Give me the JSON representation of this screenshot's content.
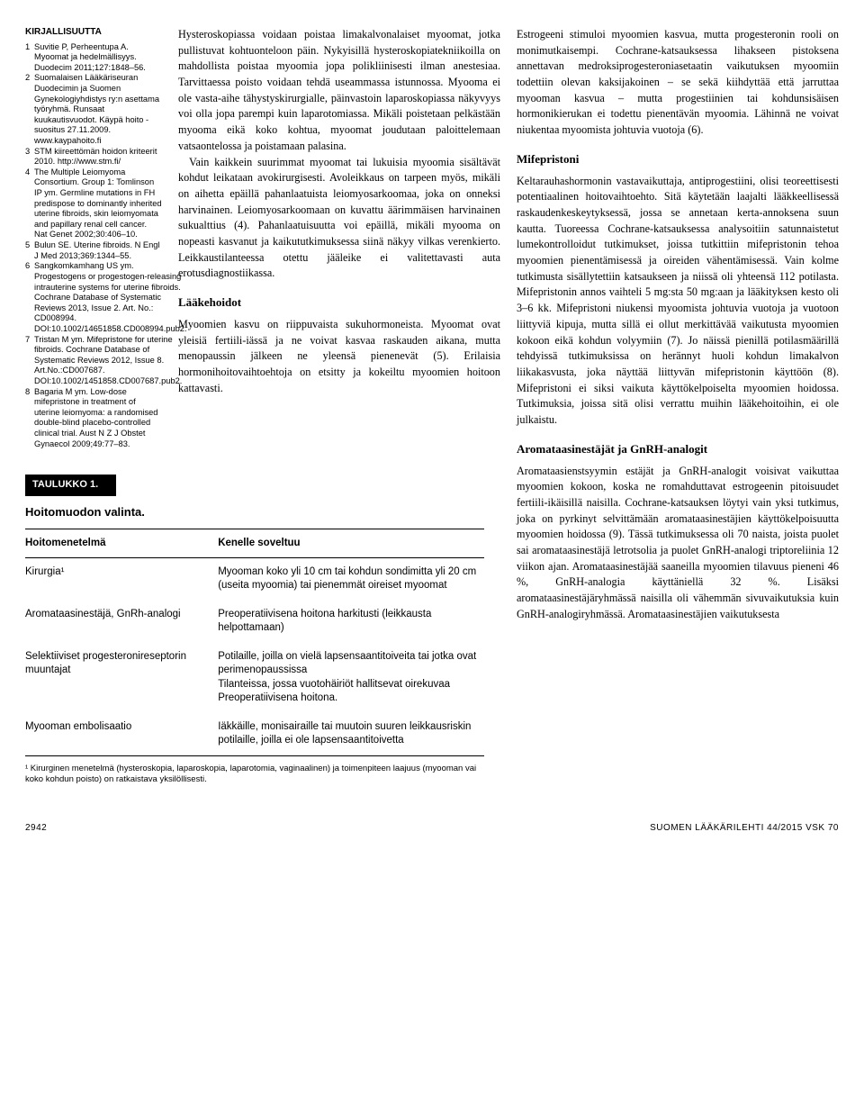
{
  "references": {
    "title": "KIRJALLISUUTTA",
    "items": [
      {
        "n": "1",
        "t": "Suvitie P, Perheentupa A. Myoomat ja hedelmällisyys. Duodecim 2011;127:1848–56."
      },
      {
        "n": "2",
        "t": "Suomalaisen Lääkäriseuran Duodecimin ja Suomen Gynekologiyhdistys ry:n asettama työryhmä. Runsaat kuukautisvuodot. Käypä hoito -suositus 27.11.2009. www.kaypahoito.fi"
      },
      {
        "n": "3",
        "t": "STM kiireettömän hoidon kriteerit 2010. http://www.stm.fi/"
      },
      {
        "n": "4",
        "t": "The Multiple Leiomyoma Consortium. Group 1: Tomlinson IP ym. Germline mutations in FH predispose to dominantly inherited uterine fibroids, skin leiomyomata and papillary renal cell cancer. Nat Genet 2002;30:406–10."
      },
      {
        "n": "5",
        "t": "Bulun SE. Uterine fibroids. N Engl J Med 2013;369:1344–55."
      },
      {
        "n": "6",
        "t": "Sangkomkamhang US ym. Progestogens or progestogen-releasing intrauterine systems for uterine fibroids. Cochrane Database of Systematic Reviews 2013, Issue 2. Art. No.: CD008994. DOI:10.1002/14651858.CD008994.pub2."
      },
      {
        "n": "7",
        "t": "Tristan M ym. Mifepristone for uterine fibroids. Cochrane Database of Systematic Reviews 2012, Issue 8. Art.No.:CD007687. DOI:10.1002/1451858.CD007687.pub2."
      },
      {
        "n": "8",
        "t": "Bagaria M ym. Low-dose mifepristone in treatment of uterine leiomyoma: a randomised double-blind placebo-controlled clinical trial. Aust N Z J Obstet Gynaecol 2009;49:77–83."
      }
    ]
  },
  "mid": {
    "p1": "Hysteroskopiassa voidaan poistaa limakalvonalaiset myoomat, jotka pullistuvat kohtuonteloon päin. Nykyisillä hysteroskopiatekniikoilla on mahdollista poistaa myoomia jopa polikliinisesti ilman anestesiaa. Tarvittaessa poisto voidaan tehdä useammassa istunnossa. Myooma ei ole vasta-aihe tähystyskirurgialle, päinvastoin laparoskopiassa näkyvyys voi olla jopa parempi kuin laparotomiassa. Mikäli poistetaan pelkästään myooma eikä koko kohtua, myoomat joudutaan paloittelemaan vatsaontelossa ja poistamaan palasina.",
    "p2": "Vain kaikkein suurimmat myoomat tai lukuisia myoomia sisältävät kohdut leikataan avokirurgisesti. Avoleikkaus on tarpeen myös, mikäli on aihetta epäillä pahanlaatuista leiomyosarkoomaa, joka on onneksi harvinainen. Leiomyosarkoomaan on kuvattu äärimmäisen harvinainen sukualttius (4). Pahanlaatuisuutta voi epäillä, mikäli myooma on nopeasti kasvanut ja kaikututkimuksessa siinä näkyy vilkas verenkierto. Leikkaustilanteessa otettu jääleike ei valitettavasti auta erotusdiagnostiikassa.",
    "h1": "Lääkehoidot",
    "p3": "Myoomien kasvu on riippuvaista sukuhormoneista. Myoomat ovat yleisiä fertiili-iässä ja ne voivat kasvaa raskauden aikana, mutta menopaussin jälkeen ne yleensä pienenevät (5). Erilaisia hormonihoitovaihtoehtoja on etsitty ja kokeiltu myoomien hoitoon kattavasti."
  },
  "right": {
    "p1": "Estrogeeni stimuloi myoomien kasvua, mutta progesteronin rooli on monimutkaisempi. Cochrane-katsauksessa lihakseen pistoksena annettavan medroksiprogesteroniasetaatin vaikutuksen myoomiin todettiin olevan kaksijakoinen – se sekä kiihdyttää että jarruttaa myooman kasvua – mutta progestiinien tai kohdunsisäisen hormonikierukan ei todettu pienentävän myoomia. Lähinnä ne voivat niukentaa myoomista johtuvia vuotoja (6).",
    "h1": "Mifepristoni",
    "p2": "Keltarauhashormonin vastavaikuttaja, antiprogestiini, olisi teoreettisesti potentiaalinen hoitovaihtoehto. Sitä käytetään laajalti lääkkeellisessä raskaudenkeskeytyksessä, jossa se annetaan kerta-annoksena suun kautta. Tuoreessa Cochrane-katsauksessa analysoitiin satunnaistetut lumekontrolloidut tutkimukset, joissa tutkittiin mifepristonin tehoa myoomien pienentämisessä ja oireiden vähentämisessä. Vain kolme tutkimusta sisällytettiin katsaukseen ja niissä oli yhteensä 112 potilasta. Mifepristonin annos vaihteli 5 mg:sta 50 mg:aan ja lääkityksen kesto oli 3–6 kk. Mifepristoni niukensi myoomista johtuvia vuotoja ja vuotoon liittyviä kipuja, mutta sillä ei ollut merkittävää vaikutusta myoomien kokoon eikä kohdun volyymiin (7). Jo näissä pienillä potilasmäärillä tehdyissä tutkimuksissa on herännyt huoli kohdun limakalvon liikakasvusta, joka näyttää liittyvän mifepristonin käyttöön (8). Mifepristoni ei siksi vaikuta käyttökelpoiselta myoomien hoidossa. Tutkimuksia, joissa sitä olisi verrattu muihin lääkehoitoihin, ei ole julkaistu.",
    "h2": "Aromataasinestäjät ja GnRH-analogit",
    "p3": "Aromataasienstsyymin estäjät ja GnRH-analogit voisivat vaikuttaa myoomien kokoon, koska ne romahduttavat estrogeenin pitoisuudet fertiili-ikäisillä naisilla. Cochrane-katsauksen löytyi vain yksi tutkimus, joka on pyrkinyt selvittämään aromataasinestäjien käyttökelpoisuutta myoomien hoidossa (9). Tässä tutkimuksessa oli 70 naista, joista puolet sai aromataasinestäjä letrotsolia ja puolet GnRH-analogi triptoreliinia 12 viikon ajan. Aromataasinestäjää saaneilla myoomien tilavuus pieneni 46 %, GnRH-analogia käyttäniellä 32 %. Lisäksi aromataasinestäjäryhmässä naisilla oli vähemmän sivuvaikutuksia kuin GnRH-analogiryhmässä. Aromataasinestäjien vaikutuksesta"
  },
  "table": {
    "badge": "TAULUKKO 1.",
    "title": "Hoitomuodon valinta.",
    "headers": [
      "Hoitomenetelmä",
      "Kenelle soveltuu"
    ],
    "rows": [
      [
        "Kirurgia¹",
        "Myooman koko yli 10 cm tai kohdun sondimitta yli 20 cm (useita myoomia) tai pienemmät oireiset myoomat"
      ],
      [
        "Aromataasinestäjä, GnRh-analogi",
        "Preoperatiivisena hoitona harkitusti (leikkausta helpottamaan)"
      ],
      [
        "Selektiiviset progesteronireseptorin muuntajat",
        "Potilaille, joilla on vielä lapsensaantitoiveita tai jotka ovat perimenopaussissa\nTilanteissa, jossa vuotohäiriöt hallitsevat oirekuvaa\nPreoperatiivisena hoitona."
      ],
      [
        "Myooman embolisaatio",
        "Iäkkäille, monisairaille tai muutoin suuren leikkausriskin potilaille, joilla ei ole lapsensaantitoivetta"
      ]
    ],
    "footnote": "¹ Kirurginen menetelmä (hysteroskopia, laparoskopia, laparotomia, vaginaalinen) ja toimenpiteen laajuus (myooman vai koko kohdun poisto) on ratkaistava yksilöllisesti."
  },
  "footer": {
    "page": "2942",
    "journal": "SUOMEN LÄÄKÄRILEHTI 44/2015 VSK 70"
  }
}
